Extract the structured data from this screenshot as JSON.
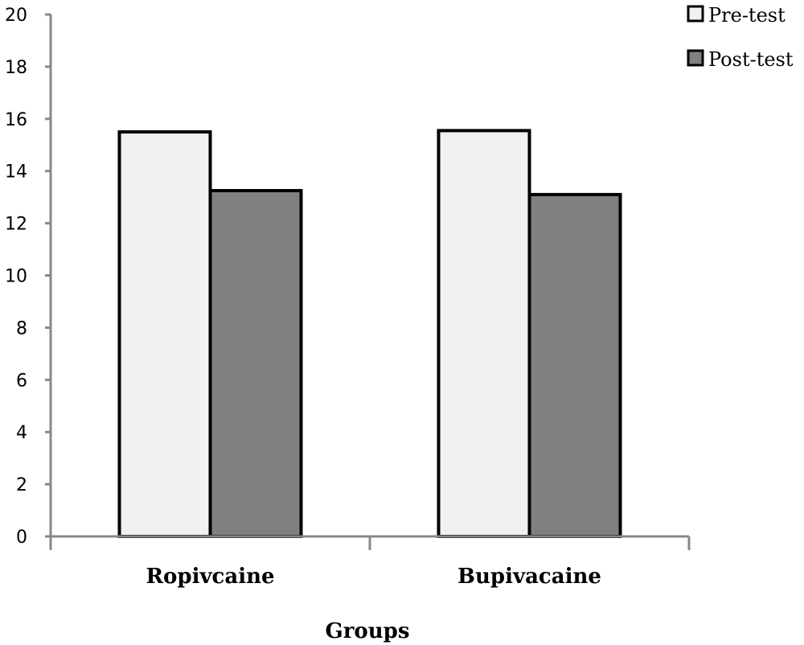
{
  "chart_data": {
    "type": "bar",
    "title": "",
    "xlabel": "Groups",
    "ylabel": "",
    "ylim": [
      0,
      20
    ],
    "yticks": [
      0,
      2,
      4,
      6,
      8,
      10,
      12,
      14,
      16,
      18,
      20
    ],
    "categories": [
      "Ropivcaine",
      "Bupivacaine"
    ],
    "series": [
      {
        "name": "Pre-test",
        "values": [
          15.5,
          15.55
        ],
        "color": "#f1f1f1"
      },
      {
        "name": "Post-test",
        "values": [
          13.25,
          13.1
        ],
        "color": "#808080"
      }
    ],
    "legend": "top-right",
    "grid": false
  }
}
